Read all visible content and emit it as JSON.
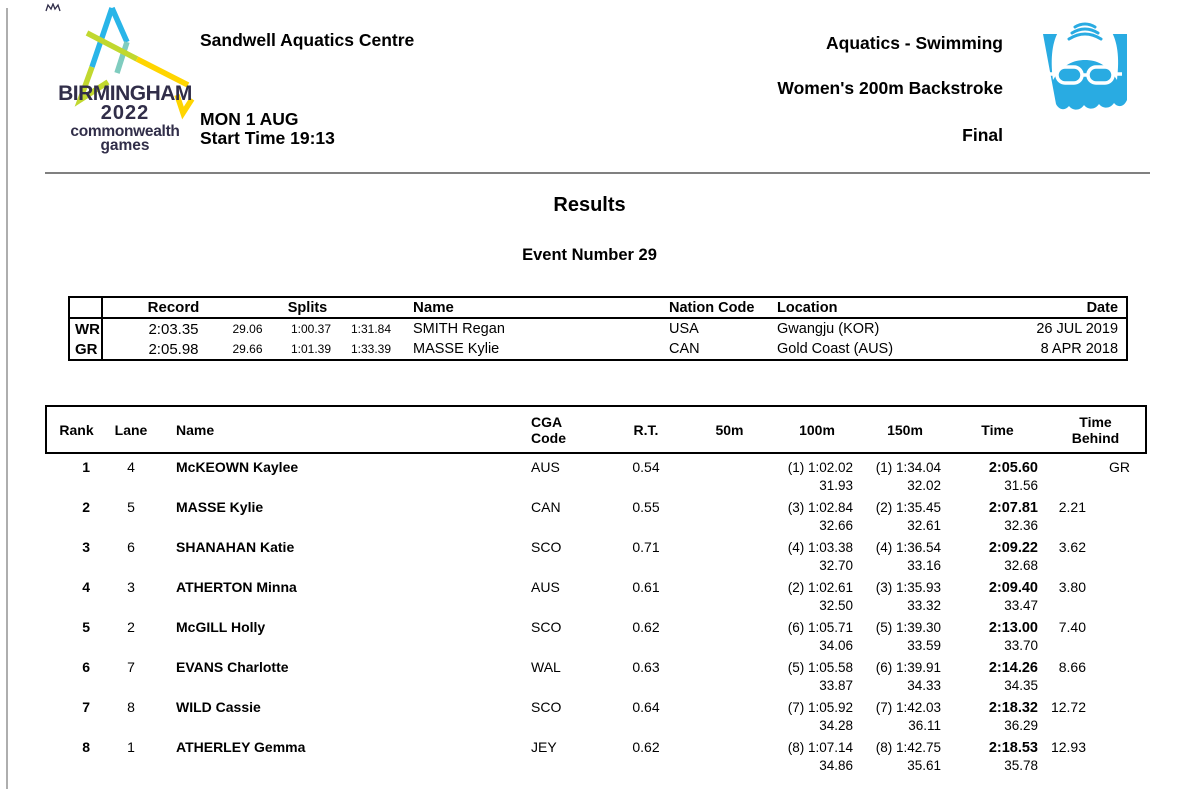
{
  "header": {
    "venue": "Sandwell Aquatics Centre",
    "date_line": "MON 1 AUG",
    "start_time_line": "Start Time 19:13",
    "sport": "Aquatics - Swimming",
    "event_title": "Women's 200m Backstroke",
    "phase": "Final"
  },
  "logo": {
    "city": "BIRMINGHAM",
    "year": "2022",
    "org_line1": "commonwealth",
    "org_line2": "games",
    "colors": {
      "blue": "#29b5e8",
      "teal": "#7fccbf",
      "lime": "#c1d82f",
      "yellow": "#ffd500",
      "navy": "#312e49"
    }
  },
  "event_icon": {
    "name": "swimming-pictogram",
    "color": "#29abe2"
  },
  "titles": {
    "results": "Results",
    "event_number": "Event Number 29"
  },
  "records": {
    "headers": {
      "record": "Record",
      "splits": "Splits",
      "name": "Name",
      "nation": "Nation Code",
      "location": "Location",
      "date": "Date"
    },
    "rows": [
      {
        "tag": "WR",
        "record": "2:03.35",
        "s1": "29.06",
        "s2": "1:00.37",
        "s3": "1:31.84",
        "name": "SMITH Regan",
        "nation": "USA",
        "location": "Gwangju (KOR)",
        "date": "26 JUL 2019"
      },
      {
        "tag": "GR",
        "record": "2:05.98",
        "s1": "29.66",
        "s2": "1:01.39",
        "s3": "1:33.39",
        "name": "MASSE Kylie",
        "nation": "CAN",
        "location": "Gold Coast (AUS)",
        "date": "8 APR 2018"
      }
    ]
  },
  "results": {
    "headers": {
      "rank": "Rank",
      "lane": "Lane",
      "name": "Name",
      "cga": "CGA\nCode",
      "rt": "R.T.",
      "m50": "50m",
      "m100": "100m",
      "m150": "150m",
      "time": "Time",
      "behind": "Time\nBehind"
    },
    "rows": [
      {
        "rank": "1",
        "lane": "4",
        "name": "McKEOWN Kaylee",
        "cga": "AUS",
        "rt": "0.54",
        "m50": "",
        "m100": "(1) 1:02.02",
        "m100_sub": "31.93",
        "m150": "(1) 1:34.04",
        "m150_sub": "32.02",
        "time": "2:05.60",
        "time_sub": "31.56",
        "behind": "",
        "flag": "GR"
      },
      {
        "rank": "2",
        "lane": "5",
        "name": "MASSE Kylie",
        "cga": "CAN",
        "rt": "0.55",
        "m50": "",
        "m100": "(3) 1:02.84",
        "m100_sub": "32.66",
        "m150": "(2) 1:35.45",
        "m150_sub": "32.61",
        "time": "2:07.81",
        "time_sub": "32.36",
        "behind": "2.21"
      },
      {
        "rank": "3",
        "lane": "6",
        "name": "SHANAHAN Katie",
        "cga": "SCO",
        "rt": "0.71",
        "m50": "",
        "m100": "(4) 1:03.38",
        "m100_sub": "32.70",
        "m150": "(4) 1:36.54",
        "m150_sub": "33.16",
        "time": "2:09.22",
        "time_sub": "32.68",
        "behind": "3.62"
      },
      {
        "rank": "4",
        "lane": "3",
        "name": "ATHERTON Minna",
        "cga": "AUS",
        "rt": "0.61",
        "m50": "",
        "m100": "(2) 1:02.61",
        "m100_sub": "32.50",
        "m150": "(3) 1:35.93",
        "m150_sub": "33.32",
        "time": "2:09.40",
        "time_sub": "33.47",
        "behind": "3.80"
      },
      {
        "rank": "5",
        "lane": "2",
        "name": "McGILL Holly",
        "cga": "SCO",
        "rt": "0.62",
        "m50": "",
        "m100": "(6) 1:05.71",
        "m100_sub": "34.06",
        "m150": "(5) 1:39.30",
        "m150_sub": "33.59",
        "time": "2:13.00",
        "time_sub": "33.70",
        "behind": "7.40"
      },
      {
        "rank": "6",
        "lane": "7",
        "name": "EVANS Charlotte",
        "cga": "WAL",
        "rt": "0.63",
        "m50": "",
        "m100": "(5) 1:05.58",
        "m100_sub": "33.87",
        "m150": "(6) 1:39.91",
        "m150_sub": "34.33",
        "time": "2:14.26",
        "time_sub": "34.35",
        "behind": "8.66"
      },
      {
        "rank": "7",
        "lane": "8",
        "name": "WILD Cassie",
        "cga": "SCO",
        "rt": "0.64",
        "m50": "",
        "m100": "(7) 1:05.92",
        "m100_sub": "34.28",
        "m150": "(7) 1:42.03",
        "m150_sub": "36.11",
        "time": "2:18.32",
        "time_sub": "36.29",
        "behind": "12.72"
      },
      {
        "rank": "8",
        "lane": "1",
        "name": "ATHERLEY Gemma",
        "cga": "JEY",
        "rt": "0.62",
        "m50": "",
        "m100": "(8) 1:07.14",
        "m100_sub": "34.86",
        "m150": "(8) 1:42.75",
        "m150_sub": "35.61",
        "time": "2:18.53",
        "time_sub": "35.78",
        "behind": "12.93"
      }
    ]
  }
}
